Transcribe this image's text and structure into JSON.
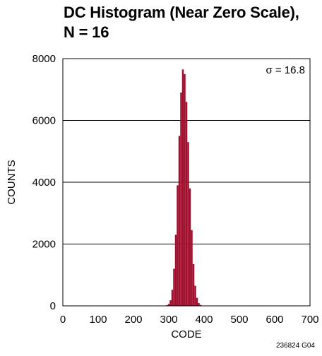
{
  "chart_data": {
    "type": "bar",
    "title": [
      "DC Histogram (Near Zero Scale),",
      "N = 16"
    ],
    "xlabel": "CODE",
    "ylabel": "COUNTS",
    "xlim": [
      0,
      700
    ],
    "ylim": [
      0,
      8000
    ],
    "xticks": [
      0,
      100,
      200,
      300,
      400,
      500,
      600,
      700
    ],
    "yticks": [
      0,
      2000,
      4000,
      6000,
      8000
    ],
    "grid": "horizontal",
    "annotation": "σ = 16.8",
    "annotation_position": "top-right",
    "bar_color": "#a10f2e",
    "series": [
      {
        "x": [
          290,
          295,
          300,
          305,
          310,
          315,
          320,
          325,
          330,
          335,
          340,
          345,
          350,
          355,
          360,
          365,
          370,
          375,
          380,
          385,
          390,
          395,
          400
        ],
        "values": [
          8,
          20,
          60,
          180,
          520,
          1200,
          2300,
          3900,
          5500,
          6900,
          7650,
          7500,
          6600,
          5300,
          3800,
          2450,
          1350,
          650,
          260,
          90,
          30,
          10,
          3
        ]
      }
    ]
  },
  "figure_id": "236824 G04"
}
